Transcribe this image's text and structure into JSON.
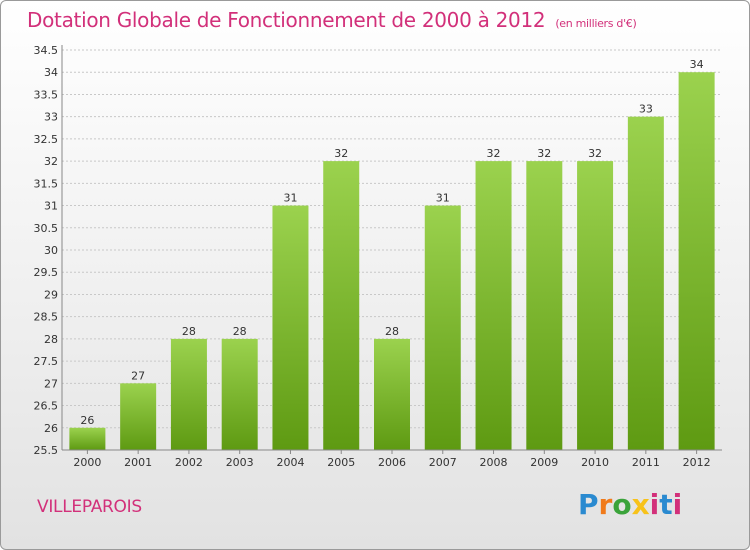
{
  "chart_data": {
    "type": "bar",
    "title": "Dotation Globale de Fonctionnement de 2000 à 2012",
    "subtitle": "(en milliers d'€)",
    "categories": [
      "2000",
      "2001",
      "2002",
      "2003",
      "2004",
      "2005",
      "2006",
      "2007",
      "2008",
      "2009",
      "2010",
      "2011",
      "2012"
    ],
    "values": [
      26,
      27,
      28,
      28,
      31,
      32,
      28,
      31,
      32,
      32,
      32,
      33,
      34
    ],
    "ylim": [
      25.5,
      34.5
    ],
    "yticks": [
      "25.5",
      "26",
      "26.5",
      "27",
      "27.5",
      "28",
      "28.5",
      "29",
      "29.5",
      "30",
      "30.5",
      "31",
      "31.5",
      "32",
      "32.5",
      "33",
      "33.5",
      "34",
      "34.5"
    ],
    "grid": true,
    "colors": {
      "bar_top": "#9bd24e",
      "bar_bottom": "#5e9a12",
      "accent": "#d2307a"
    }
  },
  "place": "VILLEPAROIS",
  "logo": {
    "p": "P",
    "r": "r",
    "o": "o",
    "x": "x",
    "i": "i",
    "t": "t",
    "i2": "i"
  }
}
